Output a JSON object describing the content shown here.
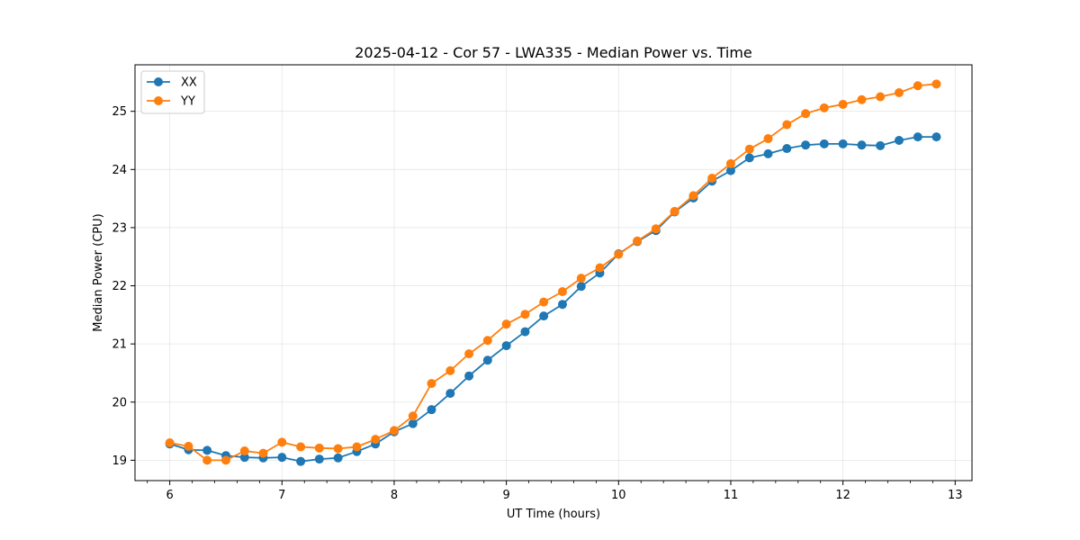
{
  "chart_data": {
    "type": "line",
    "title": "2025-04-12 - Cor 57 - LWA335 - Median Power vs. Time",
    "xlabel": "UT Time (hours)",
    "ylabel": "Median Power (CPU)",
    "xlim": [
      5.69,
      13.15
    ],
    "ylim": [
      18.65,
      25.8
    ],
    "xticks": [
      6,
      7,
      8,
      9,
      10,
      11,
      12,
      13
    ],
    "yticks": [
      19,
      20,
      21,
      22,
      23,
      24,
      25
    ],
    "grid": true,
    "legend_position": "upper-left",
    "x": [
      6.0,
      6.167,
      6.333,
      6.5,
      6.667,
      6.833,
      7.0,
      7.167,
      7.333,
      7.5,
      7.667,
      7.833,
      8.0,
      8.167,
      8.333,
      8.5,
      8.667,
      8.833,
      9.0,
      9.167,
      9.333,
      9.5,
      9.667,
      9.833,
      10.0,
      10.167,
      10.333,
      10.5,
      10.667,
      10.833,
      11.0,
      11.167,
      11.333,
      11.5,
      11.667,
      11.833,
      12.0,
      12.167,
      12.333,
      12.5,
      12.667,
      12.833
    ],
    "series": [
      {
        "name": "XX",
        "color": "#1f77b4",
        "values": [
          19.28,
          19.18,
          19.17,
          19.08,
          19.05,
          19.04,
          19.05,
          18.98,
          19.02,
          19.04,
          19.15,
          19.28,
          19.49,
          19.63,
          19.87,
          20.15,
          20.45,
          20.72,
          20.97,
          21.21,
          21.48,
          21.68,
          21.99,
          22.22,
          22.55,
          22.76,
          22.95,
          23.27,
          23.51,
          23.8,
          23.98,
          24.2,
          24.27,
          24.36,
          24.42,
          24.44,
          24.44,
          24.42,
          24.41,
          24.5,
          24.56,
          24.56
        ]
      },
      {
        "name": "YY",
        "color": "#ff7f0e",
        "values": [
          19.3,
          19.24,
          19.0,
          19.0,
          19.16,
          19.12,
          19.31,
          19.23,
          19.21,
          19.2,
          19.23,
          19.36,
          19.51,
          19.76,
          20.32,
          20.54,
          20.83,
          21.06,
          21.34,
          21.51,
          21.72,
          21.9,
          22.13,
          22.31,
          22.54,
          22.77,
          22.98,
          23.28,
          23.55,
          23.85,
          24.1,
          24.35,
          24.53,
          24.77,
          24.96,
          25.06,
          25.12,
          25.2,
          25.25,
          25.32,
          25.44,
          25.47
        ]
      }
    ]
  }
}
